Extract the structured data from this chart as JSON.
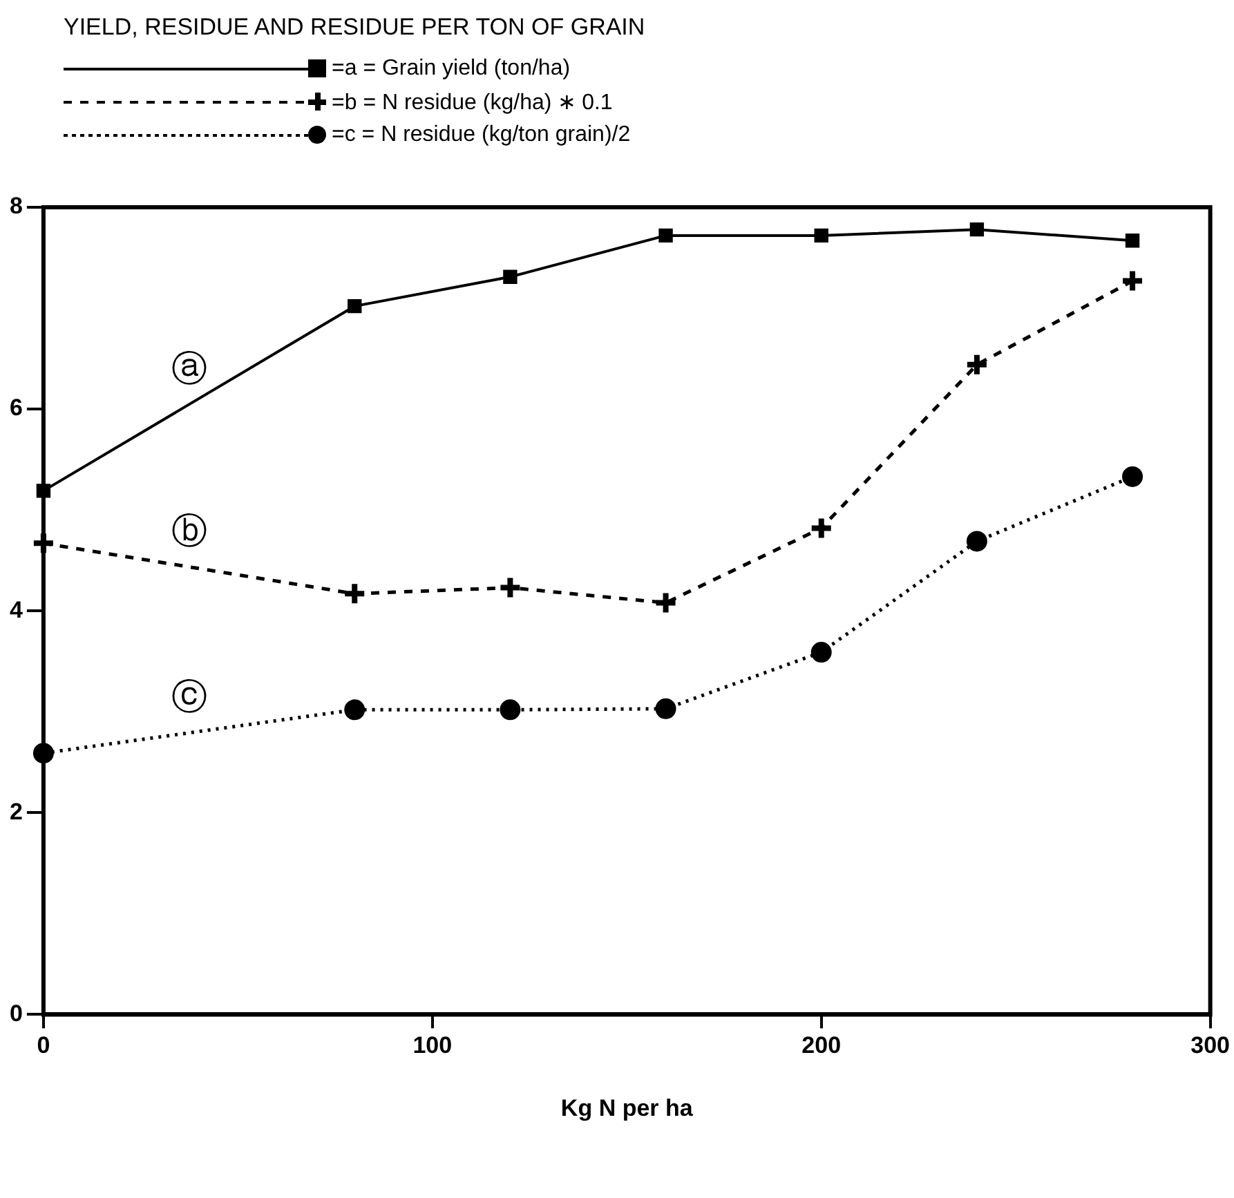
{
  "chart_data": {
    "type": "line",
    "title": "YIELD, RESIDUE AND RESIDUE PER TON OF GRAIN",
    "xlabel": "Kg N per ha",
    "x": [
      0,
      80,
      120,
      160,
      200,
      240,
      280
    ],
    "series": [
      {
        "name": "=a = Grain yield  (ton/ha)",
        "color": "#000000",
        "marker": "square",
        "line_style": "solid",
        "values": [
          5.19,
          7.02,
          7.31,
          7.72,
          7.72,
          7.78,
          7.67
        ]
      },
      {
        "name": "=b = N residue  (kg/ha) ∗ 0.1",
        "color": "#000000",
        "marker": "cross",
        "line_style": "dashed",
        "values": [
          4.67,
          4.17,
          4.23,
          4.08,
          4.82,
          6.44,
          7.27
        ]
      },
      {
        "name": "=c = N residue  (kg/ton grain)/2",
        "color": "#000000",
        "marker": "circle",
        "line_style": "dotted",
        "values": [
          2.59,
          3.02,
          3.02,
          3.03,
          3.59,
          4.69,
          5.33
        ]
      }
    ],
    "annotations": [
      "ⓐ",
      "ⓑ",
      "ⓒ"
    ],
    "xlim": [
      0,
      300
    ],
    "xticks": [
      0,
      100,
      200,
      300
    ],
    "ylim": [
      0,
      8
    ],
    "yticks": [
      0,
      2,
      4,
      6,
      8
    ],
    "grid": false,
    "legend": "top left"
  }
}
